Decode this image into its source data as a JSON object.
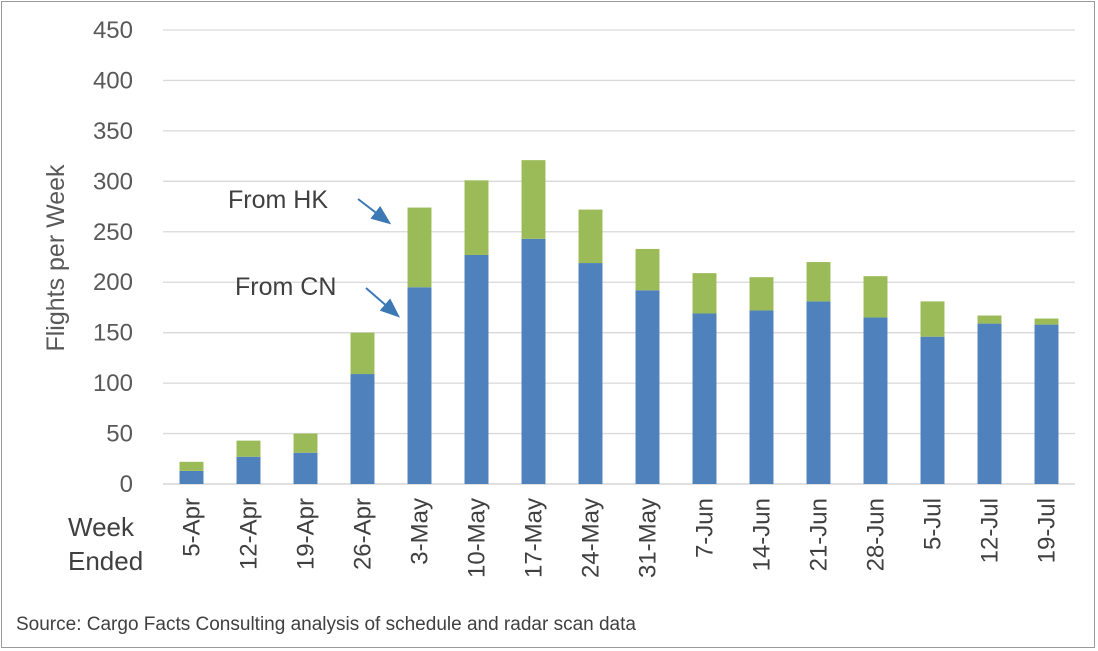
{
  "chart_data": {
    "type": "bar",
    "stacked": true,
    "categories": [
      "5-Apr",
      "12-Apr",
      "19-Apr",
      "26-Apr",
      "3-May",
      "10-May",
      "17-May",
      "24-May",
      "31-May",
      "7-Jun",
      "14-Jun",
      "21-Jun",
      "28-Jun",
      "5-Jul",
      "12-Jul",
      "19-Jul"
    ],
    "series": [
      {
        "name": "From CN",
        "color": "#4f81bd",
        "values": [
          13,
          27,
          31,
          109,
          195,
          227,
          243,
          219,
          192,
          169,
          172,
          181,
          165,
          146,
          159,
          158
        ]
      },
      {
        "name": "From HK",
        "color": "#9bbb59",
        "values": [
          9,
          16,
          19,
          41,
          79,
          74,
          78,
          53,
          41,
          40,
          33,
          39,
          41,
          35,
          8,
          6
        ]
      }
    ],
    "ylabel": "Flights per Week",
    "xlabel": "Week\nEnded",
    "xlabel_lines": [
      "Week",
      "Ended"
    ],
    "ylim": [
      0,
      450
    ],
    "yticks": [
      0,
      50,
      100,
      150,
      200,
      250,
      300,
      350,
      400,
      450
    ],
    "grid": true,
    "annotations": [
      {
        "text": "From HK",
        "points_to": "HK segment of 3-May bar"
      },
      {
        "text": "From CN",
        "points_to": "CN segment of 3-May bar"
      }
    ],
    "source": "Source: Cargo Facts Consulting analysis of schedule and radar scan data"
  }
}
